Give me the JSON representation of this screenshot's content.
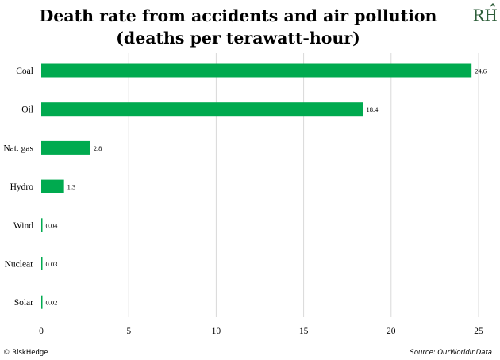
{
  "title_line1": "Death rate from accidents and air pollution",
  "title_line2": "(deaths per terawatt-hour)",
  "logo_text": "RH",
  "footer": {
    "copyright": "© RiskHedge",
    "source": "Source: OurWorldInData"
  },
  "colors": {
    "bar": "#00aa4f",
    "grid": "#d9d9d9"
  },
  "chart_data": {
    "type": "bar",
    "orientation": "horizontal",
    "categories": [
      "Coal",
      "Oil",
      "Nat. gas",
      "Hydro",
      "Wind",
      "Nuclear",
      "Solar"
    ],
    "values": [
      24.6,
      18.4,
      2.8,
      1.3,
      0.04,
      0.03,
      0.02
    ],
    "value_labels": [
      "24.6",
      "18.4",
      "2.8",
      "1.3",
      "0.04",
      "0.03",
      "0.02"
    ],
    "xlim": [
      0,
      25
    ],
    "x_ticks": [
      0,
      5,
      10,
      15,
      20,
      25
    ],
    "grid": true
  }
}
